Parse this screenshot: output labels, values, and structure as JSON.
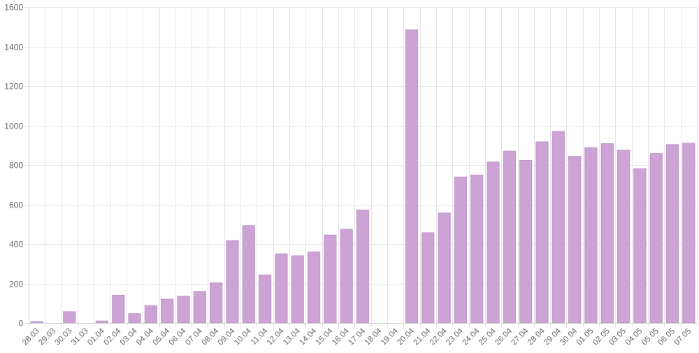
{
  "chart_data": {
    "type": "bar",
    "title": "",
    "xlabel": "",
    "ylabel": "",
    "ylim": [
      0,
      1600
    ],
    "y_ticks": [
      0,
      200,
      400,
      600,
      800,
      1000,
      1200,
      1400,
      1600
    ],
    "grid": true,
    "legend": "none",
    "colors": {
      "bar": "#cda3d6",
      "bar_border": "#c096cb",
      "grid": "#e5e5e5",
      "axis": "#cccccc"
    },
    "categories": [
      "28.03",
      "29.03",
      "30.03",
      "31.03",
      "01.04",
      "02.04",
      "03.04",
      "04.04",
      "05.04",
      "06.04",
      "07.04",
      "08.04",
      "09.04",
      "10.04",
      "11.04",
      "12.04",
      "13.04",
      "14.04",
      "15.04",
      "16.04",
      "17.04",
      "18.04",
      "19.04",
      "20.04",
      "21.04",
      "22.04",
      "23.04",
      "24.04",
      "25.04",
      "26.04",
      "27.04",
      "28.04",
      "29.04",
      "30.04",
      "01.05",
      "02.05",
      "03.05",
      "04.05",
      "05.05",
      "06.05",
      "07.05"
    ],
    "values": [
      7,
      0,
      57,
      0,
      10,
      140,
      47,
      88,
      120,
      136,
      160,
      203,
      417,
      493,
      243,
      350,
      340,
      360,
      445,
      474,
      572,
      0,
      0,
      1484,
      457,
      557,
      739,
      749,
      815,
      870,
      823,
      917,
      970,
      844,
      888,
      908,
      875,
      781,
      858,
      903,
      910
    ]
  }
}
